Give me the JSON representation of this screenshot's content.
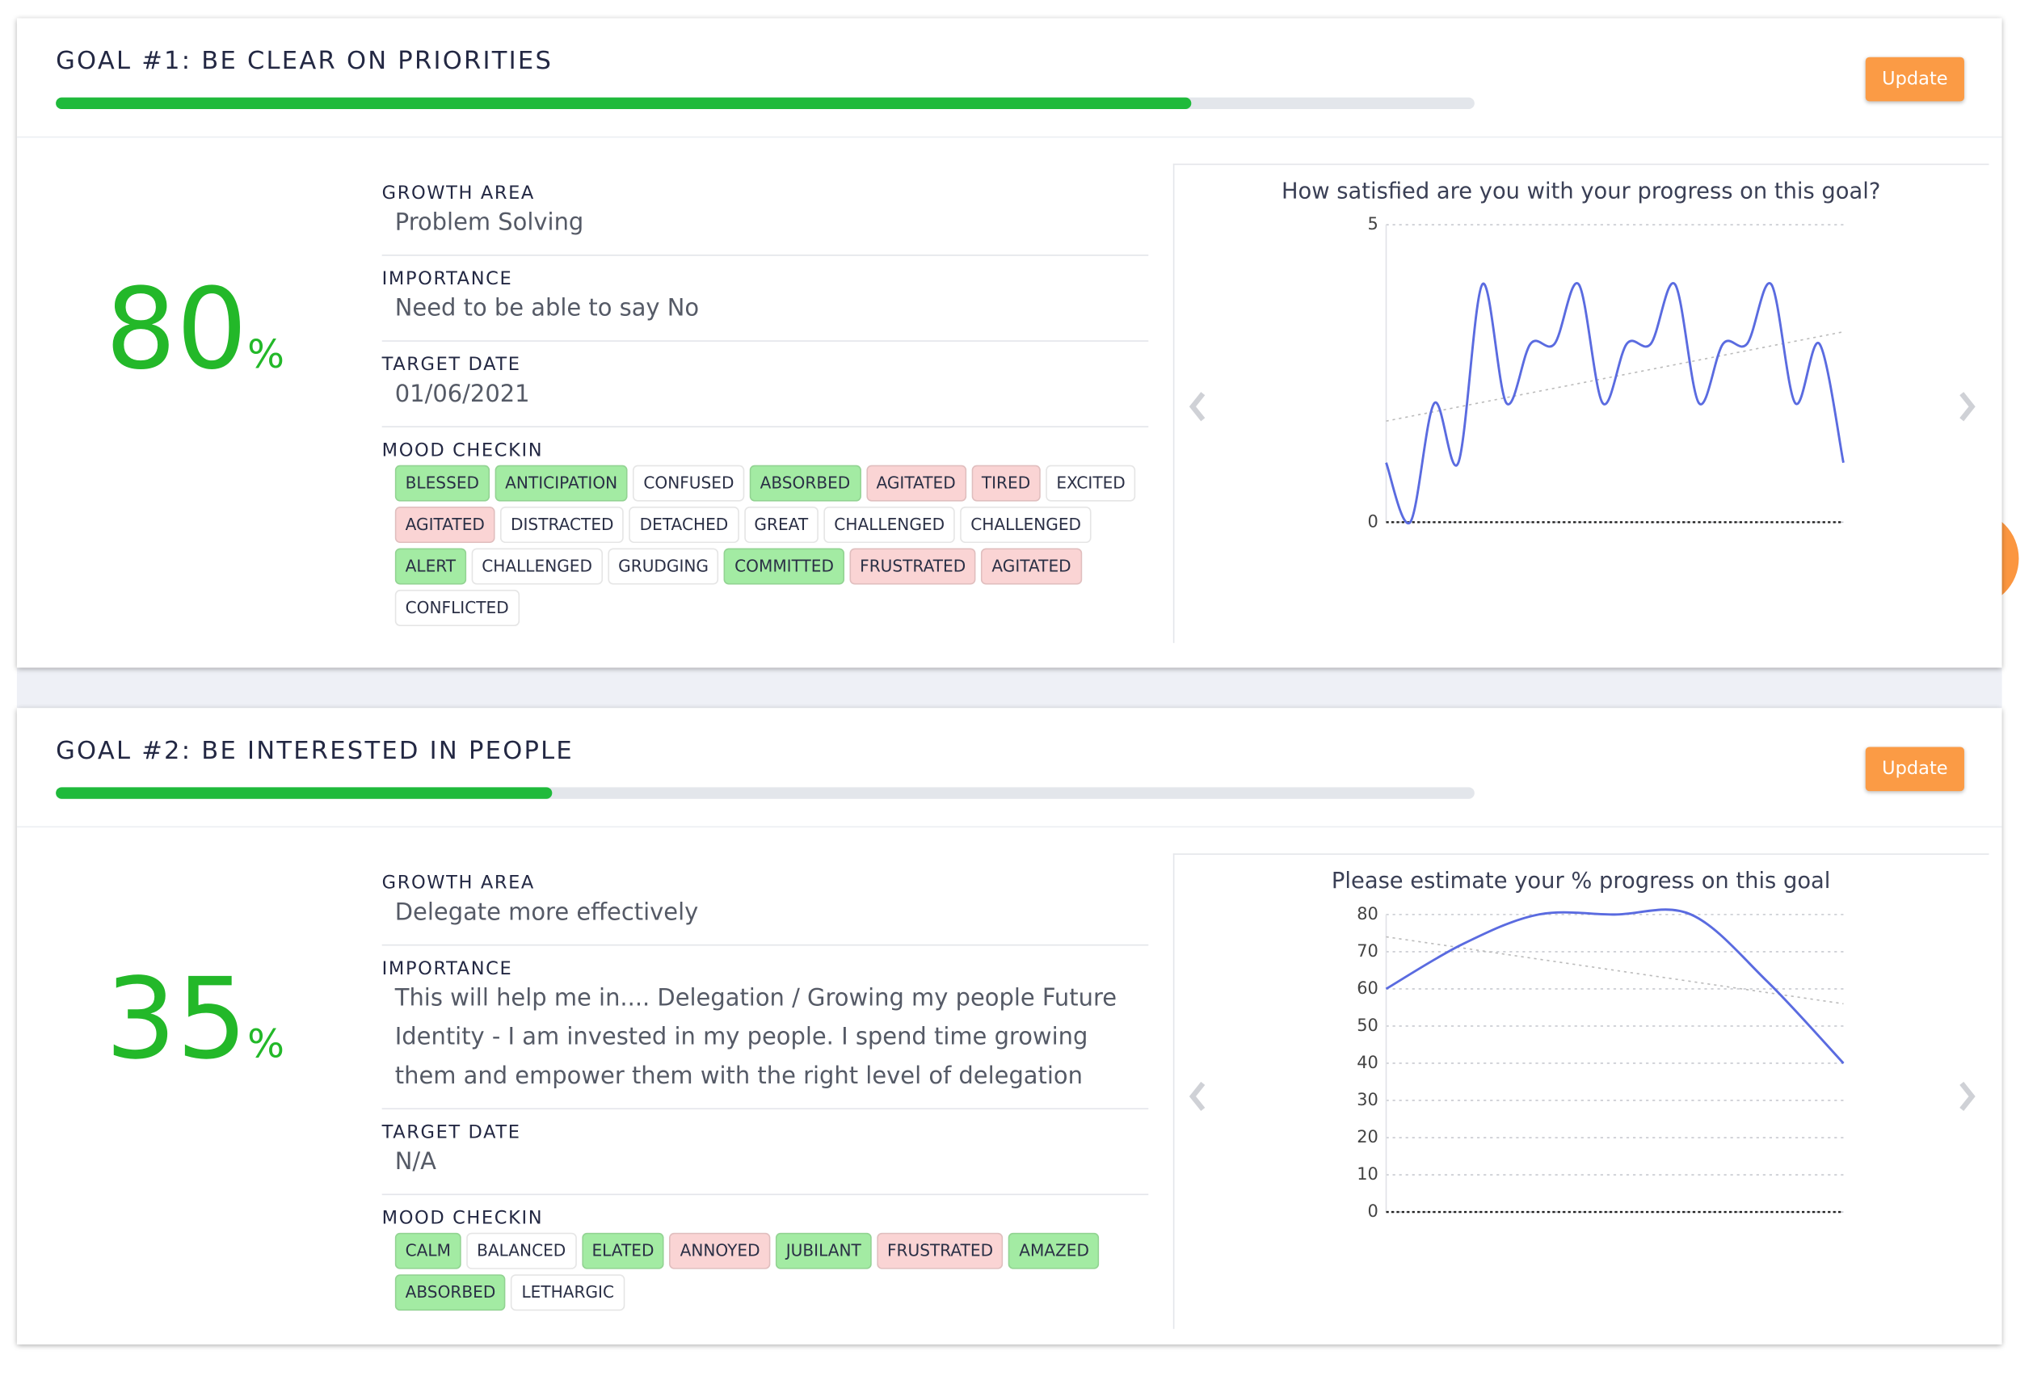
{
  "goals": [
    {
      "title": "GOAL #1: BE CLEAR ON PRIORITIES",
      "progress": 80,
      "progress_unit": "%",
      "button": "Update",
      "fields": [
        {
          "label": "GROWTH AREA",
          "value": "Problem Solving"
        },
        {
          "label": "IMPORTANCE",
          "value": "Need to be able to say No"
        },
        {
          "label": "TARGET DATE",
          "value": "01/06/2021"
        }
      ],
      "mood_label": "MOOD CHECKIN",
      "moods": [
        {
          "text": "BLESSED",
          "color": "#a3eba3"
        },
        {
          "text": "ANTICIPATION",
          "color": "#a3eba3"
        },
        {
          "text": "CONFUSED",
          "color": "#ffffff"
        },
        {
          "text": "ABSORBED",
          "color": "#a3eba3"
        },
        {
          "text": "AGITATED",
          "color": "#fad4d4"
        },
        {
          "text": "TIRED",
          "color": "#fad4d4"
        },
        {
          "text": "EXCITED",
          "color": "#ffffff"
        },
        {
          "text": "AGITATED",
          "color": "#fad4d4"
        },
        {
          "text": "DISTRACTED",
          "color": "#ffffff"
        },
        {
          "text": "DETACHED",
          "color": "#ffffff"
        },
        {
          "text": "GREAT",
          "color": "#ffffff"
        },
        {
          "text": "CHALLENGED",
          "color": "#ffffff"
        },
        {
          "text": "CHALLENGED",
          "color": "#ffffff"
        },
        {
          "text": "ALERT",
          "color": "#a3eba3"
        },
        {
          "text": "CHALLENGED",
          "color": "#ffffff"
        },
        {
          "text": "GRUDGING",
          "color": "#ffffff"
        },
        {
          "text": "COMMITTED",
          "color": "#a3eba3"
        },
        {
          "text": "FRUSTRATED",
          "color": "#fad4d4"
        },
        {
          "text": "AGITATED",
          "color": "#fad4d4"
        },
        {
          "text": "CONFLICTED",
          "color": "#ffffff"
        }
      ],
      "chart": {
        "type": "line",
        "title": "How satisfied are you with your progress on this goal?",
        "values": [
          1,
          0,
          2,
          1,
          4,
          2,
          3,
          3,
          4,
          2,
          3,
          3,
          4,
          2,
          3,
          3,
          4,
          2,
          3,
          1
        ],
        "trend": [
          1.7,
          3.2
        ],
        "color": "#5a6be0",
        "ylim": [
          0,
          5
        ],
        "yticks": [
          0,
          5
        ]
      }
    },
    {
      "title": "GOAL #2: BE INTERESTED IN PEOPLE",
      "progress": 35,
      "progress_unit": "%",
      "button": "Update",
      "fields": [
        {
          "label": "GROWTH AREA",
          "value": "Delegate more effectively"
        },
        {
          "label": "IMPORTANCE",
          "value": "This will help me in.... Delegation / Growing my people Future Identity - I am invested in my people. I spend time growing them and empower them with the right level of delegation"
        },
        {
          "label": "TARGET DATE",
          "value": "N/A"
        }
      ],
      "mood_label": "MOOD CHECKIN",
      "moods": [
        {
          "text": "CALM",
          "color": "#a3eba3"
        },
        {
          "text": "BALANCED",
          "color": "#ffffff"
        },
        {
          "text": "ELATED",
          "color": "#a3eba3"
        },
        {
          "text": "ANNOYED",
          "color": "#fad4d4"
        },
        {
          "text": "JUBILANT",
          "color": "#a3eba3"
        },
        {
          "text": "FRUSTRATED",
          "color": "#fad4d4"
        },
        {
          "text": "AMAZED",
          "color": "#a3eba3"
        },
        {
          "text": "ABSORBED",
          "color": "#a3eba3"
        },
        {
          "text": "LETHARGIC",
          "color": "#ffffff"
        }
      ],
      "chart": {
        "type": "line",
        "title": "Please estimate your % progress on this goal",
        "values": [
          60,
          72,
          80,
          80,
          80,
          62,
          40
        ],
        "trend": [
          74,
          56
        ],
        "color": "#5a6be0",
        "ylim": [
          0,
          80
        ],
        "yticks": [
          0,
          10,
          20,
          30,
          40,
          50,
          60,
          70,
          80
        ]
      }
    }
  ]
}
